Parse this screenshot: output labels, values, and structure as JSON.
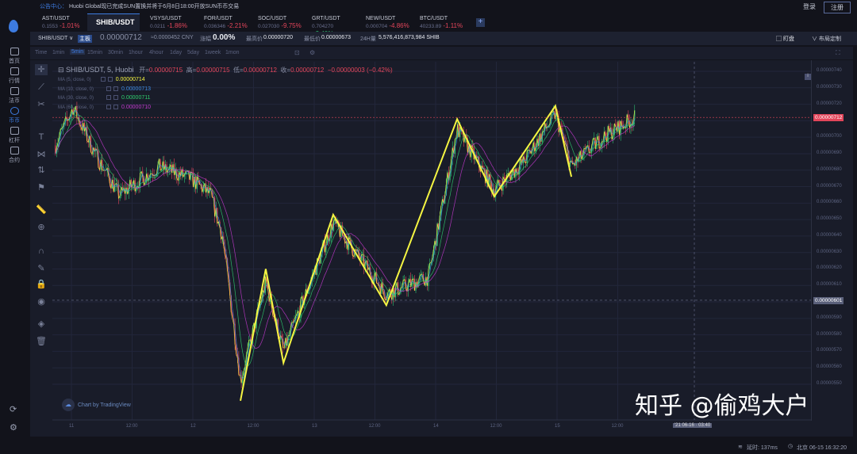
{
  "announcement": {
    "label": "公告中心：",
    "text": "Huobi Global现已完成SUN置换并将于6月8日18:00开放SUN币币交易"
  },
  "auth": {
    "login": "登录",
    "register": "注册"
  },
  "sidebar": {
    "items": [
      {
        "label": "首页",
        "icon": "home-icon"
      },
      {
        "label": "行情",
        "icon": "chart-icon"
      },
      {
        "label": "法币",
        "icon": "wallet-icon"
      },
      {
        "label": "币币",
        "icon": "coin-icon",
        "active": true
      },
      {
        "label": "杠杆",
        "icon": "gauge-icon"
      },
      {
        "label": "合约",
        "icon": "contract-icon"
      }
    ]
  },
  "tabs": [
    {
      "pair": "AST/USDT",
      "price": "0.1553",
      "change": "-1.01%"
    },
    {
      "pair": "SHIB/USDT",
      "active": true
    },
    {
      "pair": "VSYS/USDT",
      "price": "0.0211",
      "change": "-1.86%"
    },
    {
      "pair": "FOR/USDT",
      "price": "0.036346",
      "change": "-2.21%"
    },
    {
      "pair": "SOC/USDT",
      "price": "0.027030",
      "change": "-9.75%"
    },
    {
      "pair": "GRT/USDT",
      "price": "0.704270",
      "change": "+2.40%"
    },
    {
      "pair": "NEW/USDT",
      "price": "0.000704",
      "change": "-4.86%"
    },
    {
      "pair": "BTC/USDT",
      "price": "40233.89",
      "change": "-1.11%"
    }
  ],
  "info": {
    "pair": "SHIB/USDT ∨",
    "board": "主板",
    "price": "0.00000712",
    "cny": "≈0.0000452 CNY",
    "change_label": "涨幅",
    "change": "0.00%",
    "high_label": "最高价",
    "high": "0.00000720",
    "low_label": "最低价",
    "low": "0.00000673",
    "vol_label": "24H量",
    "volume": "5,576,416,873,984 SHIB",
    "fav": "盯盘",
    "layout": "布局定制"
  },
  "intervals": [
    "Time",
    "1min",
    "5min",
    "15min",
    "30min",
    "1hour",
    "4hour",
    "1day",
    "5day",
    "1week",
    "1mon"
  ],
  "selected_interval": "5min",
  "legend": {
    "title": "⊟ SHIB/USDT, 5, Huobi",
    "o_label": "开=",
    "o": "0.00000715",
    "h_label": "高=",
    "h": "0.00000715",
    "l_label": "低=",
    "l": "0.00000712",
    "c_label": "收=",
    "c": "0.00000712",
    "chg": "−0.00000003 (−0.42%)"
  },
  "ma": [
    {
      "label": "MA (5, close, 0)",
      "value": "0.00000714",
      "color": "#f5f542",
      "period": 5
    },
    {
      "label": "MA (10, close, 0)",
      "value": "0.00000713",
      "color": "#3d8be0",
      "period": 10
    },
    {
      "label": "MA (30, close, 0)",
      "value": "0.00000711",
      "color": "#2fcf6f",
      "period": 30
    },
    {
      "label": "MA (60, close, 0)",
      "value": "0.00000710",
      "color": "#c53ad0",
      "period": 60
    }
  ],
  "chart_data": {
    "type": "candlestick",
    "ylim": [
      545,
      745
    ],
    "unit": "1e-8 USDT",
    "y_ticks": [
      "0.00000740",
      "0.00000730",
      "0.00000720",
      "0.00000710",
      "0.00000700",
      "0.00000690",
      "0.00000680",
      "0.00000670",
      "0.00000660",
      "0.00000650",
      "0.00000640",
      "0.00000630",
      "0.00000620",
      "0.00000610",
      "0.00000600",
      "0.00000590",
      "0.00000580",
      "0.00000570",
      "0.00000560",
      "0.00000550"
    ],
    "x_ticks": [
      "11",
      "12:00",
      "12",
      "12:00",
      "13",
      "12:00",
      "14",
      "12:00",
      "15",
      "12:00"
    ],
    "last_price_tag": "0.00000712",
    "crosshair_price_tag": "0.00000601",
    "crosshair_time_tag": "'21 06-16 · 03:40",
    "price_path": [
      [
        "06-10 20:50",
        695
      ],
      [
        "06-11 00:20",
        718
      ],
      [
        "06-11 04:40",
        690
      ],
      [
        "06-11 09:25",
        665
      ],
      [
        "06-11 17:15",
        682
      ],
      [
        "06-11 23:30",
        675
      ],
      [
        "06-12 03:30",
        665
      ],
      [
        "06-12 05:50",
        640
      ],
      [
        "06-12 08:55",
        565
      ],
      [
        "06-12 09:25",
        552
      ],
      [
        "06-12 14:25",
        612
      ],
      [
        "06-12 17:55",
        570
      ],
      [
        "06-13 03:45",
        648
      ],
      [
        "06-13 14:15",
        605
      ],
      [
        "06-13 22:35",
        615
      ],
      [
        "06-14 04:15",
        705
      ],
      [
        "06-14 11:35",
        668
      ],
      [
        "06-14 17:25",
        685
      ],
      [
        "06-14 23:40",
        714
      ],
      [
        "06-15 02:50",
        682
      ],
      [
        "06-15 09:05",
        700
      ],
      [
        "06-15 15:25",
        712
      ]
    ],
    "zigzag": [
      [
        "06-12 09:25",
        540
      ],
      [
        "06-12 14:25",
        620
      ],
      [
        "06-12 17:55",
        563
      ],
      [
        "06-13 03:45",
        653
      ],
      [
        "06-13 14:15",
        598
      ],
      [
        "06-14 04:15",
        711
      ],
      [
        "06-14 11:35",
        664
      ],
      [
        "06-14 23:40",
        719
      ],
      [
        "06-15 02:50",
        676
      ]
    ],
    "colors": {
      "up": "#2fbf71",
      "down": "#e2455a",
      "zigzag": "#f5f542"
    }
  },
  "tv_badge": "Chart by TradingView",
  "watermark": "知乎 @偷鸡大户",
  "footer": {
    "latency": "延时: 137ms",
    "clock": "北京  06-15 16:32:20"
  }
}
